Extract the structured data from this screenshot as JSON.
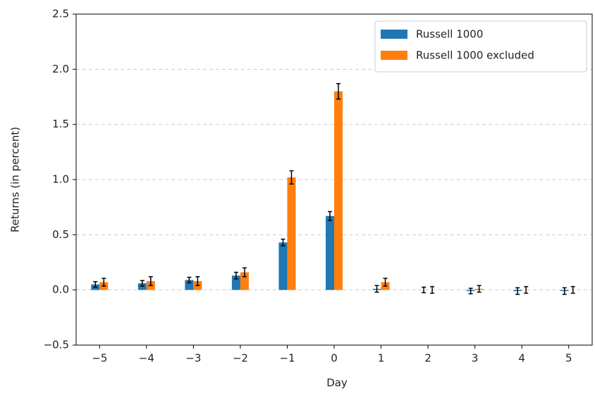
{
  "chart_data": {
    "type": "bar",
    "x_label": "Day",
    "y_label": "Returns (in percent)",
    "categories": [
      "−5",
      "−4",
      "−3",
      "−2",
      "−1",
      "0",
      "1",
      "2",
      "3",
      "4",
      "5"
    ],
    "series": [
      {
        "name": "Russell 1000",
        "color": "#1f77b4",
        "values": [
          0.05,
          0.06,
          0.09,
          0.13,
          0.43,
          0.67,
          0.01,
          0.0,
          -0.01,
          -0.01,
          -0.01
        ],
        "errors": [
          0.025,
          0.025,
          0.025,
          0.03,
          0.03,
          0.04,
          0.03,
          0.025,
          0.025,
          0.03,
          0.03
        ]
      },
      {
        "name": "Russell 1000 excluded",
        "color": "#ff7f0e",
        "values": [
          0.07,
          0.08,
          0.08,
          0.16,
          1.02,
          1.8,
          0.07,
          0.0,
          0.01,
          0.0,
          0.0
        ],
        "errors": [
          0.035,
          0.04,
          0.04,
          0.04,
          0.06,
          0.07,
          0.035,
          0.03,
          0.03,
          0.03,
          0.03
        ]
      }
    ],
    "ylim": [
      -0.5,
      2.5
    ],
    "yticks": [
      {
        "value": -0.5,
        "label": "−0.5"
      },
      {
        "value": 0,
        "label": "0.0"
      },
      {
        "value": 0.5,
        "label": "0.5"
      },
      {
        "value": 1,
        "label": "1.0"
      },
      {
        "value": 1.5,
        "label": "1.5"
      },
      {
        "value": 2,
        "label": "2.0"
      },
      {
        "value": 2.5,
        "label": "2.5"
      }
    ],
    "grid": true,
    "legend": "upper right"
  }
}
